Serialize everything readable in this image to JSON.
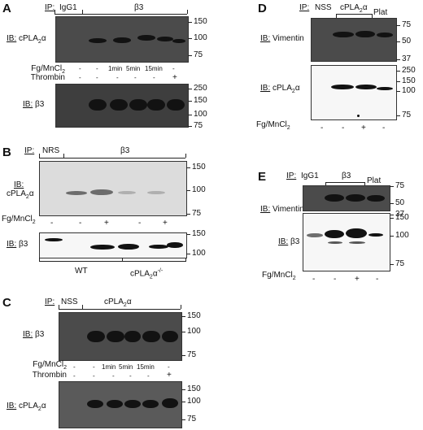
{
  "panelA": {
    "letter": "A",
    "ip_label": "IP:",
    "ip_groups": [
      "IgG1",
      "β3"
    ],
    "blot1": {
      "ib": "IB:",
      "target": "cPLA",
      "sub": "2",
      "suffix": "α",
      "markers": [
        "150",
        "100",
        "75"
      ]
    },
    "rows": [
      {
        "label": "Fg/MnCl",
        "sub": "2",
        "values": [
          "-",
          "-",
          "1min",
          "5min",
          "15min",
          "-"
        ]
      },
      {
        "label": "Thrombin",
        "values": [
          "-",
          "-",
          "-",
          "-",
          "-",
          "+"
        ]
      }
    ],
    "blot2": {
      "ib": "IB:",
      "target": "β3",
      "markers": [
        "250",
        "150",
        "100",
        "75"
      ]
    }
  },
  "panelB": {
    "letter": "B",
    "ip_label": "IP:",
    "ip_groups": [
      "NRS",
      "β3"
    ],
    "blot1": {
      "ib": "IB:",
      "target": "cPLA",
      "sub": "2",
      "suffix": "α",
      "markers": [
        "150",
        "100",
        "75"
      ]
    },
    "row": {
      "label": "Fg/MnCl",
      "sub": "2",
      "values": [
        "-",
        "-",
        "+",
        "-",
        "+"
      ]
    },
    "blot2": {
      "ib": "IB:",
      "target": "β3",
      "markers": [
        "150",
        "100"
      ]
    },
    "genotypes": [
      "WT",
      "cPLA",
      "2",
      "α",
      "-/-"
    ]
  },
  "panelC": {
    "letter": "C",
    "ip_label": "IP:",
    "ip_groups": [
      "NSS",
      "cPLA",
      "2",
      "α"
    ],
    "blot1": {
      "ib": "IB:",
      "target": "β3",
      "markers": [
        "150",
        "100",
        "75"
      ]
    },
    "rows": [
      {
        "label": "Fg/MnCl",
        "sub": "2",
        "values": [
          "-",
          "-",
          "1min",
          "5min",
          "15min",
          "-"
        ]
      },
      {
        "label": "Thrombin",
        "values": [
          "-",
          "-",
          "-",
          "-",
          "-",
          "+"
        ]
      }
    ],
    "blot2": {
      "ib": "IB:",
      "target": "cPLA",
      "sub": "2",
      "suffix": "α",
      "markers": [
        "150",
        "100",
        "75"
      ]
    }
  },
  "panelD": {
    "letter": "D",
    "ip_label": "IP:",
    "ip_groups": [
      "NSS",
      "cPLA",
      "2",
      "α",
      "Plat"
    ],
    "blot1": {
      "ib": "IB:",
      "target": "Vimentin",
      "markers": [
        "75",
        "50",
        "37"
      ]
    },
    "blot2": {
      "ib": "IB:",
      "target": "cPLA",
      "sub": "2",
      "suffix": "α",
      "markers": [
        "250",
        "150",
        "100",
        "75"
      ]
    },
    "row": {
      "label": "Fg/MnCl",
      "sub": "2",
      "values": [
        "-",
        "-",
        "+",
        "-"
      ]
    }
  },
  "panelE": {
    "letter": "E",
    "ip_label": "IP:",
    "ip_groups": [
      "IgG1",
      "β3",
      "Plat"
    ],
    "blot1": {
      "ib": "IB:",
      "target": "Vimentin",
      "markers": [
        "75",
        "50",
        "37"
      ]
    },
    "blot2": {
      "ib": "IB:",
      "target": "β3",
      "markers": [
        "150",
        "100",
        "75"
      ]
    },
    "row": {
      "label": "Fg/MnCl",
      "sub": "2",
      "values": [
        "-",
        "-",
        "+",
        "-"
      ]
    }
  }
}
